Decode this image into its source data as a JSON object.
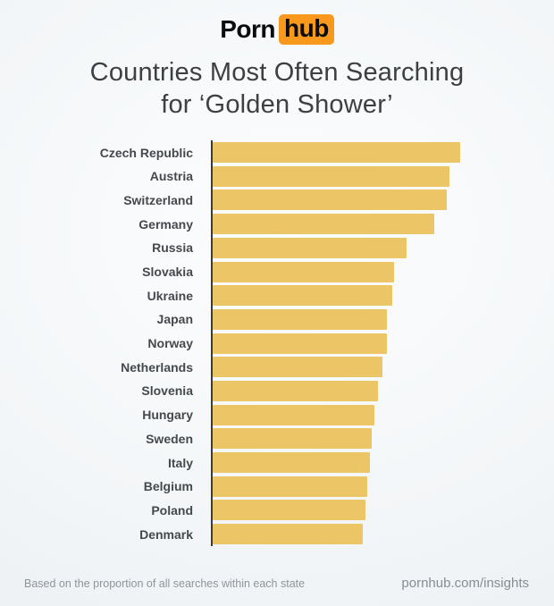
{
  "logo": {
    "part1": "Porn",
    "part2": "hub"
  },
  "title": {
    "line1": "Countries Most Often Searching",
    "line2": "for ‘Golden Shower’"
  },
  "chart_data": {
    "type": "bar",
    "orientation": "horizontal",
    "title": "Countries Most Often Searching for ‘Golden Shower’",
    "categories": [
      "Czech Republic",
      "Austria",
      "Switzerland",
      "Germany",
      "Russia",
      "Slovakia",
      "Ukraine",
      "Japan",
      "Norway",
      "Netherlands",
      "Slovenia",
      "Hungary",
      "Sweden",
      "Italy",
      "Belgium",
      "Poland",
      "Denmark"
    ],
    "values": [
      100,
      95.7,
      94.6,
      89.5,
      78.3,
      73.3,
      72.6,
      70.4,
      70.4,
      68.6,
      66.8,
      65.3,
      64.3,
      63.5,
      62.5,
      61.7,
      60.6
    ],
    "unit": "relative search share (Czech Republic = 100)",
    "xlabel": "",
    "ylabel": "",
    "xlim": [
      0,
      100
    ],
    "grid": false,
    "legend": false,
    "bar_color": "#ecc566",
    "axis_color": "#3b3b3b"
  },
  "footer": {
    "note": "Based on the proportion of all searches within each state",
    "site": "pornhub.com/insights"
  },
  "colors": {
    "accent_orange": "#f8991d",
    "bar_gold": "#ecc566",
    "title_text": "#3d3f41",
    "label_text": "#45484d",
    "footer_text": "#8d969b"
  }
}
